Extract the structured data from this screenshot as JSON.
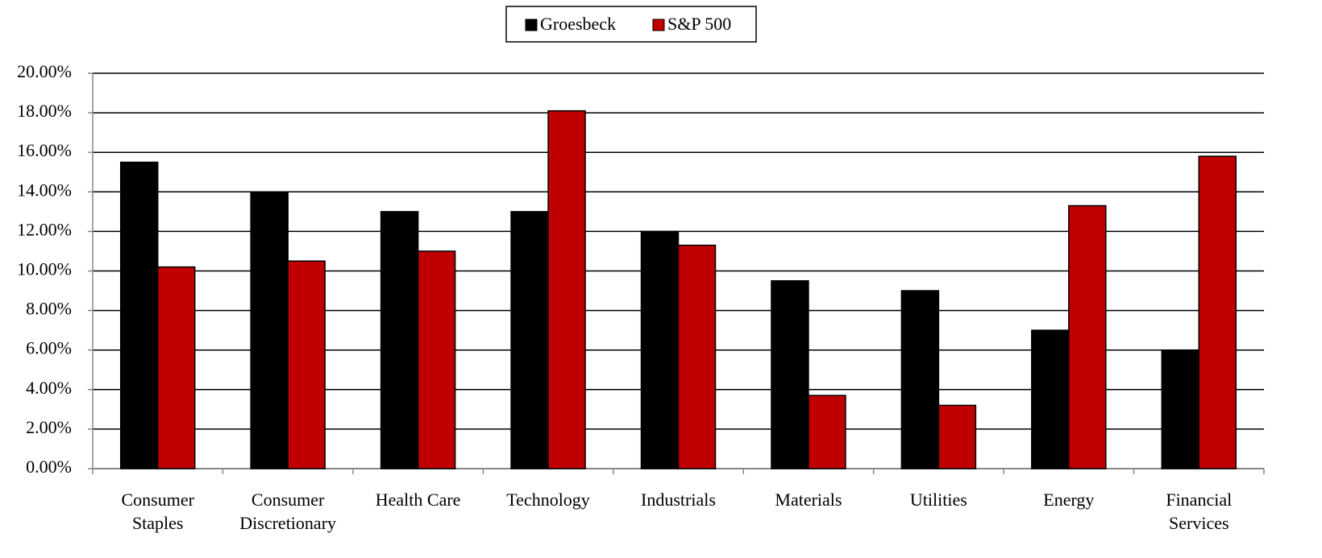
{
  "chart_data": {
    "type": "bar",
    "categories": [
      "Consumer Staples",
      "Consumer Discretionary",
      "Health Care",
      "Technology",
      "Industrials",
      "Materials",
      "Utilities",
      "Energy",
      "Financial Services"
    ],
    "series": [
      {
        "name": "Groesbeck",
        "color": "#000000",
        "values": [
          15.5,
          14,
          13,
          13,
          12,
          9.5,
          9,
          7,
          6
        ]
      },
      {
        "name": "S&P 500",
        "color": "#c00000",
        "values": [
          10.2,
          10.5,
          11,
          18.1,
          11.3,
          3.7,
          3.2,
          13.3,
          15.8
        ]
      }
    ],
    "ylim": [
      0,
      20
    ],
    "yticks": [
      {
        "value": 0,
        "label": "0.00%"
      },
      {
        "value": 2,
        "label": "2.00%"
      },
      {
        "value": 4,
        "label": "4.00%"
      },
      {
        "value": 6,
        "label": "6.00%"
      },
      {
        "value": 8,
        "label": "8.00%"
      },
      {
        "value": 10,
        "label": "10.00%"
      },
      {
        "value": 12,
        "label": "12.00%"
      },
      {
        "value": 14,
        "label": "14.00%"
      },
      {
        "value": 16,
        "label": "16.00%"
      },
      {
        "value": 18,
        "label": "18.00%"
      },
      {
        "value": 20,
        "label": "20.00%"
      }
    ],
    "grid": true,
    "legend": "top"
  }
}
